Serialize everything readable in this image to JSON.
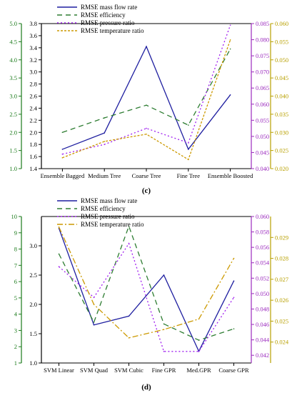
{
  "figure": {
    "panel_labels": [
      "(c)",
      "(d)"
    ]
  },
  "chart_data": [
    {
      "type": "line",
      "panel": "(c)",
      "categories": [
        "Ensemble Bagged",
        "Medium Tree",
        "Coarse Tree",
        "Fine Tree",
        "Ensemble Boosted"
      ],
      "axes": {
        "A": {
          "ticks": [
            "1.0",
            "1.5",
            "2.0",
            "2.5",
            "3.0",
            "3.5",
            "4.0",
            "4.5",
            "5.0"
          ],
          "ylim": [
            1.0,
            5.0
          ],
          "color": "#1a7a1a",
          "side": "left",
          "offset": 0
        },
        "B": {
          "ticks": [
            "1.4",
            "1.6",
            "1.8",
            "2.0",
            "2.2",
            "2.4",
            "2.6",
            "2.8",
            "3.0",
            "3.2",
            "3.4",
            "3.6",
            "3.8"
          ],
          "ylim": [
            1.4,
            3.8
          ],
          "color": "#000000",
          "side": "left",
          "offset": 1
        },
        "C": {
          "ticks": [
            "0.040",
            "0.045",
            "0.050",
            "0.055",
            "0.060",
            "0.065",
            "0.070",
            "0.075",
            "0.080",
            "0.085"
          ],
          "ylim": [
            0.04,
            0.085
          ],
          "color": "#9b2bbd",
          "side": "right",
          "offset": 0
        },
        "D": {
          "ticks": [
            "0.020",
            "0.025",
            "0.030",
            "0.035",
            "0.040",
            "0.045",
            "0.050",
            "0.055",
            "0.060"
          ],
          "ylim": [
            0.02,
            0.06
          ],
          "color": "#b8a000",
          "side": "right",
          "offset": 1
        }
      },
      "series": [
        {
          "name": "RMSE mass flow rate",
          "axis": "B",
          "color": "#1f1fa0",
          "dash": "",
          "values": [
            1.72,
            1.99,
            3.42,
            1.72,
            2.62
          ]
        },
        {
          "name": "RMSE efficiency",
          "axis": "A",
          "color": "#2e7d32",
          "dash": "7,5",
          "values": [
            2.0,
            2.4,
            2.75,
            2.2,
            4.3
          ]
        },
        {
          "name": "RMSE pressure ratio",
          "axis": "C",
          "color": "#a020f0",
          "dash": "2,3",
          "values": [
            0.0445,
            0.0475,
            0.0525,
            0.048,
            0.0845
          ]
        },
        {
          "name": "RMSE temperature ratio",
          "axis": "D",
          "color": "#cc9900",
          "dash": "3,2",
          "values": [
            0.023,
            0.0275,
            0.0295,
            0.0225,
            0.0555
          ]
        }
      ]
    },
    {
      "type": "line",
      "panel": "(d)",
      "categories": [
        "SVM Linear",
        "SVM Quad",
        "SVM Cubic",
        "Fine GPR",
        "Med.GPR",
        "Coarse GPR"
      ],
      "axes": {
        "A": {
          "ticks": [
            "1",
            "2",
            "3",
            "4",
            "5",
            "6",
            "7",
            "8",
            "9",
            "10"
          ],
          "ylim": [
            1,
            10
          ],
          "color": "#1a7a1a",
          "side": "left",
          "offset": 0
        },
        "B": {
          "ticks": [
            "1.0",
            "1.5",
            "2.0",
            "2.5",
            "3.0"
          ],
          "ylim": [
            1.0,
            3.5
          ],
          "color": "#000000",
          "side": "left",
          "offset": 1
        },
        "C": {
          "ticks": [
            "0.042",
            "0.044",
            "0.046",
            "0.048",
            "0.050",
            "0.052",
            "0.054",
            "0.056",
            "0.058",
            "0.060"
          ],
          "ylim": [
            0.041,
            0.06
          ],
          "color": "#9b2bbd",
          "side": "right",
          "offset": 0
        },
        "D": {
          "ticks": [
            "0.024",
            "0.025",
            "0.026",
            "0.027",
            "0.028",
            "0.029"
          ],
          "ylim": [
            0.023,
            0.03
          ],
          "color": "#b8a000",
          "side": "right",
          "offset": 1
        }
      },
      "series": [
        {
          "name": "RMSE mass flow rate",
          "axis": "B",
          "color": "#1f1fa0",
          "dash": "",
          "values": [
            3.3,
            1.65,
            1.8,
            2.5,
            1.2,
            2.4
          ]
        },
        {
          "name": "RMSE efficiency",
          "axis": "A",
          "color": "#2e7d32",
          "dash": "7,5",
          "values": [
            7.7,
            3.5,
            9.4,
            3.4,
            2.4,
            3.1
          ]
        },
        {
          "name": "RMSE pressure ratio",
          "axis": "C",
          "color": "#a020f0",
          "dash": "2,3",
          "values": [
            0.0535,
            0.0495,
            0.0565,
            0.0425,
            0.0425,
            0.0495
          ]
        },
        {
          "name": "RMSE temperature ratio",
          "axis": "D",
          "color": "#cc9900",
          "dash": "8,3,2,3",
          "values": [
            0.0295,
            0.0258,
            0.0242,
            0.0246,
            0.0251,
            0.028
          ]
        }
      ]
    }
  ]
}
